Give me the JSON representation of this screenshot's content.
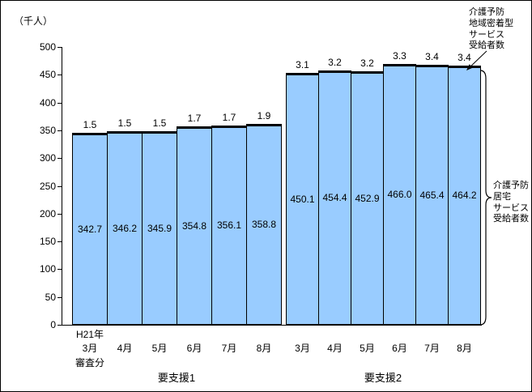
{
  "chart_data": {
    "type": "bar",
    "stacked": true,
    "y_unit": "（千人）",
    "ylim": [
      0,
      500
    ],
    "ytick_step": 50,
    "grid": false,
    "groups": [
      {
        "label": "要支援1",
        "header_first": "H21年",
        "footer_first": "審査分",
        "categories": [
          "3月",
          "4月",
          "5月",
          "6月",
          "7月",
          "8月"
        ],
        "series": [
          {
            "name": "介護予防居宅サービス受給者数",
            "values": [
              342.7,
              346.2,
              345.9,
              354.8,
              356.1,
              358.8
            ]
          },
          {
            "name": "介護予防地域密着型サービス受給者数",
            "values": [
              1.5,
              1.5,
              1.5,
              1.7,
              1.7,
              1.9
            ]
          }
        ]
      },
      {
        "label": "要支援2",
        "categories": [
          "3月",
          "4月",
          "5月",
          "6月",
          "7月",
          "8月"
        ],
        "series": [
          {
            "name": "介護予防居宅サービス受給者数",
            "values": [
              450.1,
              454.4,
              452.9,
              466.0,
              465.4,
              464.2
            ]
          },
          {
            "name": "介護予防地域密着型サービス受給者数",
            "values": [
              3.1,
              3.2,
              3.2,
              3.3,
              3.4,
              3.4
            ]
          }
        ]
      }
    ],
    "annotations": {
      "community": "介護予防\n地域密着型\nサービス\n受給者数",
      "home": "介護予防\n居宅\nサービス\n受給者数"
    }
  },
  "style": {
    "bar_fill": "#99CCFF",
    "bar_border": "#000000",
    "axis_color": "#000000"
  }
}
